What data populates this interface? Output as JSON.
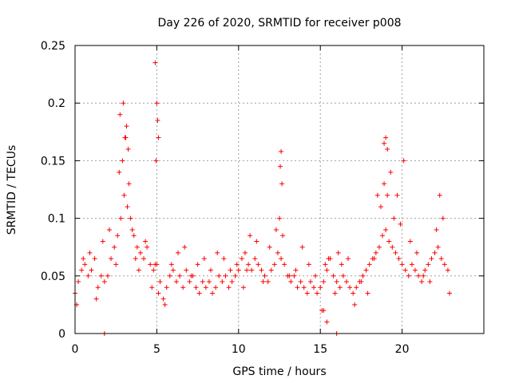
{
  "chart_data": {
    "type": "scatter",
    "title": "Day 226 of 2020, SRMTID for receiver p008",
    "xlabel": "GPS time / hours",
    "ylabel": "SRMTID / TECUs",
    "xlim": [
      0,
      25
    ],
    "ylim": [
      0,
      0.25
    ],
    "xticks": [
      0,
      5,
      10,
      15,
      20
    ],
    "xtick_labels": [
      "0",
      "5",
      "10",
      "15",
      "20"
    ],
    "yticks": [
      0,
      0.05,
      0.1,
      0.15,
      0.2,
      0.25
    ],
    "ytick_labels": [
      "0",
      "0.05",
      "0.1",
      "0.15",
      "0.2",
      "0.25"
    ],
    "grid": true,
    "marker": "+",
    "series_color": "#ff0000",
    "series": [
      {
        "name": "SRMTID p008",
        "x": [
          0.0,
          0.2,
          0.4,
          0.6,
          0.8,
          1.0,
          1.2,
          1.4,
          1.6,
          1.8,
          2.0,
          2.2,
          2.4,
          2.6,
          2.8,
          3.0,
          3.2,
          3.4,
          3.6,
          3.8,
          4.0,
          4.2,
          4.4,
          4.6,
          4.8,
          5.0,
          5.2,
          5.4,
          5.6,
          5.8,
          6.0,
          6.2,
          6.4,
          6.6,
          6.8,
          7.0,
          7.2,
          7.4,
          7.6,
          7.8,
          8.0,
          8.2,
          8.4,
          8.6,
          8.8,
          9.0,
          9.2,
          9.4,
          9.6,
          9.8,
          10.0,
          10.2,
          10.4,
          10.6,
          10.8,
          11.0,
          11.2,
          11.4,
          11.6,
          11.8,
          12.0,
          12.2,
          12.4,
          12.6,
          12.8,
          13.0,
          13.2,
          13.4,
          13.6,
          13.8,
          14.0,
          14.2,
          14.4,
          14.6,
          14.8,
          15.0,
          15.2,
          15.4,
          15.6,
          15.8,
          16.0,
          16.2,
          16.4,
          16.6,
          16.8,
          17.0,
          17.2,
          17.4,
          17.6,
          17.8,
          18.0,
          18.2,
          18.4,
          18.6,
          18.8,
          19.0,
          19.2,
          19.4,
          19.6,
          19.8,
          20.0,
          20.2,
          20.4,
          20.6,
          20.8,
          21.0,
          21.2,
          21.4,
          21.6,
          21.8,
          22.0,
          22.2,
          22.4,
          22.6,
          22.8,
          0.1,
          0.5,
          0.9,
          1.3,
          1.7,
          2.1,
          2.5,
          2.7,
          2.9,
          3.1,
          3.3,
          3.5,
          3.7,
          3.9,
          4.3,
          4.7,
          4.9,
          5.1,
          5.5,
          5.9,
          6.3,
          6.7,
          7.1,
          7.5,
          7.9,
          8.3,
          8.7,
          9.1,
          9.5,
          9.9,
          10.3,
          10.5,
          10.7,
          11.1,
          11.5,
          11.9,
          12.3,
          12.5,
          12.7,
          13.1,
          13.5,
          13.9,
          14.3,
          14.7,
          15.1,
          15.3,
          15.5,
          15.9,
          16.1,
          16.3,
          16.7,
          17.1,
          17.5,
          17.9,
          18.3,
          18.5,
          18.7,
          18.9,
          19.1,
          19.3,
          19.5,
          19.7,
          19.9,
          20.1,
          20.5,
          20.9,
          21.3,
          21.7,
          22.1,
          22.3,
          22.5,
          22.9,
          2.75,
          2.95,
          3.15,
          3.25,
          3.05,
          4.9,
          5.0,
          5.05,
          5.1,
          4.95,
          12.6,
          12.55,
          12.65,
          18.9,
          19.0,
          19.1,
          15.4,
          1.8,
          16.0,
          15.2
        ],
        "y": [
          0.035,
          0.045,
          0.055,
          0.06,
          0.05,
          0.055,
          0.065,
          0.04,
          0.05,
          0.045,
          0.05,
          0.065,
          0.075,
          0.085,
          0.1,
          0.12,
          0.11,
          0.1,
          0.085,
          0.075,
          0.07,
          0.065,
          0.075,
          0.06,
          0.055,
          0.06,
          0.045,
          0.03,
          0.04,
          0.05,
          0.055,
          0.045,
          0.05,
          0.04,
          0.055,
          0.045,
          0.05,
          0.04,
          0.035,
          0.045,
          0.04,
          0.045,
          0.035,
          0.04,
          0.05,
          0.045,
          0.05,
          0.04,
          0.045,
          0.05,
          0.055,
          0.065,
          0.07,
          0.06,
          0.055,
          0.065,
          0.06,
          0.055,
          0.05,
          0.045,
          0.055,
          0.06,
          0.07,
          0.065,
          0.06,
          0.05,
          0.045,
          0.05,
          0.04,
          0.045,
          0.04,
          0.035,
          0.045,
          0.04,
          0.035,
          0.04,
          0.045,
          0.055,
          0.065,
          0.05,
          0.045,
          0.04,
          0.05,
          0.045,
          0.04,
          0.035,
          0.04,
          0.045,
          0.05,
          0.055,
          0.06,
          0.065,
          0.07,
          0.075,
          0.085,
          0.09,
          0.08,
          0.075,
          0.07,
          0.065,
          0.06,
          0.055,
          0.05,
          0.06,
          0.055,
          0.05,
          0.045,
          0.055,
          0.06,
          0.065,
          0.07,
          0.075,
          0.065,
          0.06,
          0.055,
          0.025,
          0.065,
          0.07,
          0.03,
          0.08,
          0.09,
          0.06,
          0.14,
          0.15,
          0.17,
          0.13,
          0.09,
          0.065,
          0.055,
          0.08,
          0.04,
          0.06,
          0.035,
          0.025,
          0.06,
          0.07,
          0.075,
          0.05,
          0.06,
          0.065,
          0.055,
          0.07,
          0.065,
          0.055,
          0.06,
          0.04,
          0.055,
          0.085,
          0.08,
          0.045,
          0.075,
          0.09,
          0.1,
          0.085,
          0.05,
          0.055,
          0.075,
          0.06,
          0.05,
          0.02,
          0.06,
          0.065,
          0.035,
          0.07,
          0.06,
          0.065,
          0.025,
          0.045,
          0.035,
          0.065,
          0.12,
          0.11,
          0.13,
          0.12,
          0.14,
          0.1,
          0.12,
          0.095,
          0.15,
          0.08,
          0.07,
          0.05,
          0.045,
          0.09,
          0.12,
          0.1,
          0.035,
          0.19,
          0.2,
          0.18,
          0.16,
          0.17,
          0.235,
          0.2,
          0.185,
          0.17,
          0.15,
          0.158,
          0.145,
          0.13,
          0.165,
          0.17,
          0.16,
          0.01,
          0.0,
          0.0,
          0.02
        ]
      }
    ]
  }
}
